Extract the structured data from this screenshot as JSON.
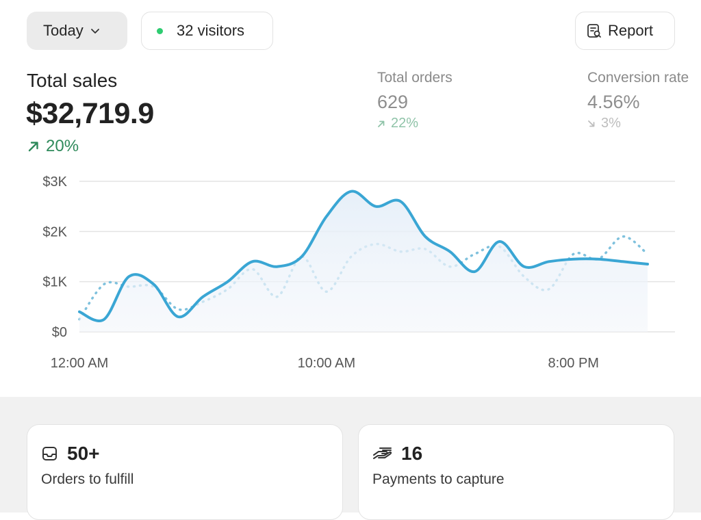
{
  "filters": {
    "date_label": "Today",
    "visitors_label": "32 visitors",
    "report_label": "Report"
  },
  "summary": {
    "total_sales_label": "Total sales",
    "total_sales_value": "$32,719.9",
    "total_sales_change": "20%",
    "metrics": [
      {
        "label": "Total orders",
        "value": "629",
        "change": "22%",
        "direction": "up"
      },
      {
        "label": "Conversion rate",
        "value": "4.56%",
        "change": "3%",
        "direction": "down"
      }
    ]
  },
  "cards": [
    {
      "value": "50+",
      "label": "Orders to fulfill",
      "icon": "inbox-icon"
    },
    {
      "value": "16",
      "label": "Payments to capture",
      "icon": "payment-hand-icon"
    }
  ],
  "colors": {
    "primary_series": "#3aa6d4",
    "comparison_series": "#7fc1dd",
    "positive": "#2f8a5b",
    "status_dot": "#2ecc71"
  },
  "chart_data": {
    "type": "line",
    "x": [
      "12:00 AM",
      "1:00 AM",
      "2:00 AM",
      "3:00 AM",
      "4:00 AM",
      "5:00 AM",
      "6:00 AM",
      "7:00 AM",
      "8:00 AM",
      "9:00 AM",
      "10:00 AM",
      "11:00 AM",
      "12:00 PM",
      "1:00 PM",
      "2:00 PM",
      "3:00 PM",
      "4:00 PM",
      "5:00 PM",
      "6:00 PM",
      "7:00 PM",
      "8:00 PM",
      "9:00 PM",
      "10:00 PM",
      "11:00 PM"
    ],
    "x_ticks": [
      "12:00 AM",
      "10:00 AM",
      "8:00 PM"
    ],
    "y_ticks": [
      "$0",
      "$1K",
      "$2K",
      "$3K"
    ],
    "ylim": [
      0,
      3000
    ],
    "grid": true,
    "series": [
      {
        "values": [
          400,
          250,
          1100,
          950,
          300,
          700,
          1000,
          1400,
          1300,
          1500,
          2300,
          2800,
          2500,
          2600,
          1900,
          1600,
          1200,
          1800,
          1300,
          1400,
          1450,
          1450,
          1400,
          1350
        ],
        "style": "solid",
        "area": true
      },
      {
        "values": [
          250,
          950,
          900,
          900,
          450,
          600,
          850,
          1250,
          700,
          1500,
          800,
          1500,
          1750,
          1600,
          1650,
          1300,
          1550,
          1700,
          1100,
          850,
          1550,
          1450,
          1900,
          1550
        ],
        "style": "dotted"
      }
    ]
  }
}
